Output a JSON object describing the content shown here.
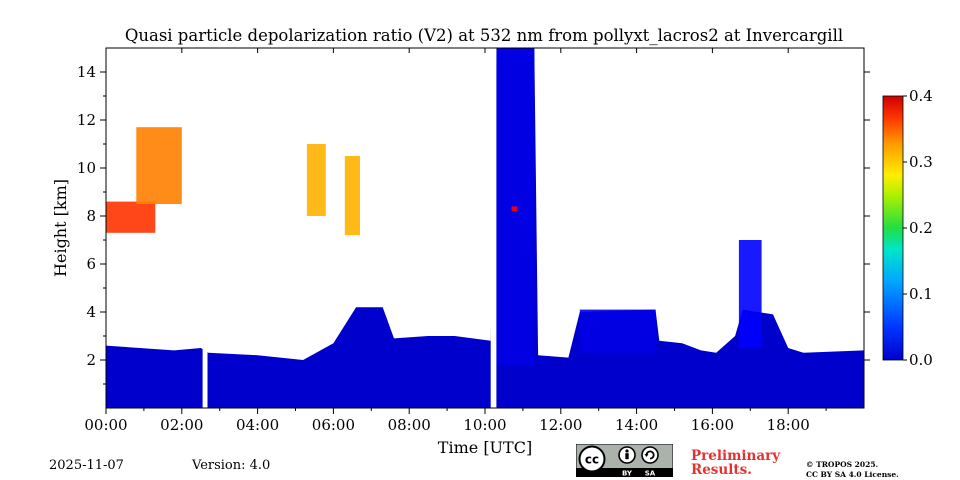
{
  "chart_data": {
    "type": "heatmap",
    "title": "Quasi particle depolarization ratio (V2) at 532 nm from pollyxt_lacros2 at Invercargill",
    "xlabel": "Time [UTC]",
    "ylabel": "Height [km]",
    "xlim_hours": [
      0,
      20
    ],
    "ylim_km": [
      0,
      15
    ],
    "x_ticks": [
      {
        "value": 0,
        "label": "00:00"
      },
      {
        "value": 2,
        "label": "02:00"
      },
      {
        "value": 4,
        "label": "04:00"
      },
      {
        "value": 6,
        "label": "06:00"
      },
      {
        "value": 8,
        "label": "08:00"
      },
      {
        "value": 10,
        "label": "10:00"
      },
      {
        "value": 12,
        "label": "12:00"
      },
      {
        "value": 14,
        "label": "14:00"
      },
      {
        "value": 16,
        "label": "16:00"
      },
      {
        "value": 18,
        "label": "18:00"
      }
    ],
    "y_ticks": [
      {
        "value": 2,
        "label": "2"
      },
      {
        "value": 4,
        "label": "4"
      },
      {
        "value": 6,
        "label": "6"
      },
      {
        "value": 8,
        "label": "8"
      },
      {
        "value": 10,
        "label": "10"
      },
      {
        "value": 12,
        "label": "12"
      },
      {
        "value": 14,
        "label": "14"
      }
    ],
    "colorbar": {
      "range": [
        0.0,
        0.4
      ],
      "colormap": "jet",
      "ticks": [
        {
          "value": 0.0,
          "label": "0.0"
        },
        {
          "value": 0.1,
          "label": "0.1"
        },
        {
          "value": 0.2,
          "label": "0.2"
        },
        {
          "value": 0.3,
          "label": "0.3"
        },
        {
          "value": 0.4,
          "label": "0.4"
        }
      ]
    },
    "data_gaps_hours": [
      [
        2.55,
        2.68
      ],
      [
        10.15,
        10.3
      ]
    ],
    "regions": [
      {
        "t": [
          0,
          20
        ],
        "h": [
          0,
          2.5
        ],
        "value": 0.03
      },
      {
        "t": [
          0.0,
          1.3
        ],
        "h": [
          7.3,
          8.6
        ],
        "value": 0.33
      },
      {
        "t": [
          0.8,
          2.0
        ],
        "h": [
          8.5,
          11.7
        ],
        "value": 0.3
      },
      {
        "t": [
          5.3,
          5.8
        ],
        "h": [
          8.0,
          11.0
        ],
        "value": 0.28
      },
      {
        "t": [
          6.3,
          6.7
        ],
        "h": [
          7.2,
          10.5
        ],
        "value": 0.28
      },
      {
        "t": [
          10.3,
          11.3
        ],
        "h": [
          1.8,
          15.0
        ],
        "value": 0.04
      },
      {
        "t": [
          10.7,
          10.85
        ],
        "h": [
          8.2,
          8.4
        ],
        "value": 0.35
      },
      {
        "t": [
          12.5,
          14.5
        ],
        "h": [
          2.3,
          4.1
        ],
        "value": 0.04
      },
      {
        "t": [
          16.7,
          17.3
        ],
        "h": [
          2.5,
          7.0
        ],
        "value": 0.05
      }
    ],
    "cloud_top_profile_km": [
      [
        0.0,
        2.6
      ],
      [
        1.8,
        2.4
      ],
      [
        2.5,
        2.5
      ],
      [
        2.7,
        2.3
      ],
      [
        4.0,
        2.2
      ],
      [
        5.2,
        2.0
      ],
      [
        6.0,
        2.7
      ],
      [
        6.6,
        4.2
      ],
      [
        7.3,
        4.2
      ],
      [
        7.6,
        2.9
      ],
      [
        8.5,
        3.0
      ],
      [
        9.2,
        3.0
      ],
      [
        10.15,
        2.8
      ],
      [
        10.3,
        15.0
      ],
      [
        11.3,
        15.0
      ],
      [
        11.4,
        2.2
      ],
      [
        12.2,
        2.1
      ],
      [
        12.5,
        4.0
      ],
      [
        14.5,
        4.1
      ],
      [
        14.6,
        2.8
      ],
      [
        15.2,
        2.7
      ],
      [
        15.7,
        2.4
      ],
      [
        16.1,
        2.3
      ],
      [
        16.6,
        3.0
      ],
      [
        16.8,
        4.1
      ],
      [
        17.6,
        3.9
      ],
      [
        18.0,
        2.5
      ],
      [
        18.4,
        2.3
      ],
      [
        20.0,
        2.4
      ]
    ]
  },
  "footer": {
    "date": "2025-11-07",
    "version": "Version: 4.0",
    "preliminary_line1": "Preliminary",
    "preliminary_line2": "Results.",
    "license_line1": "© TROPOS 2025.",
    "license_line2": "CC BY SA 4.0 License.",
    "cc_labels": {
      "cc": "cc",
      "by": "BY",
      "sa": "SA"
    }
  }
}
